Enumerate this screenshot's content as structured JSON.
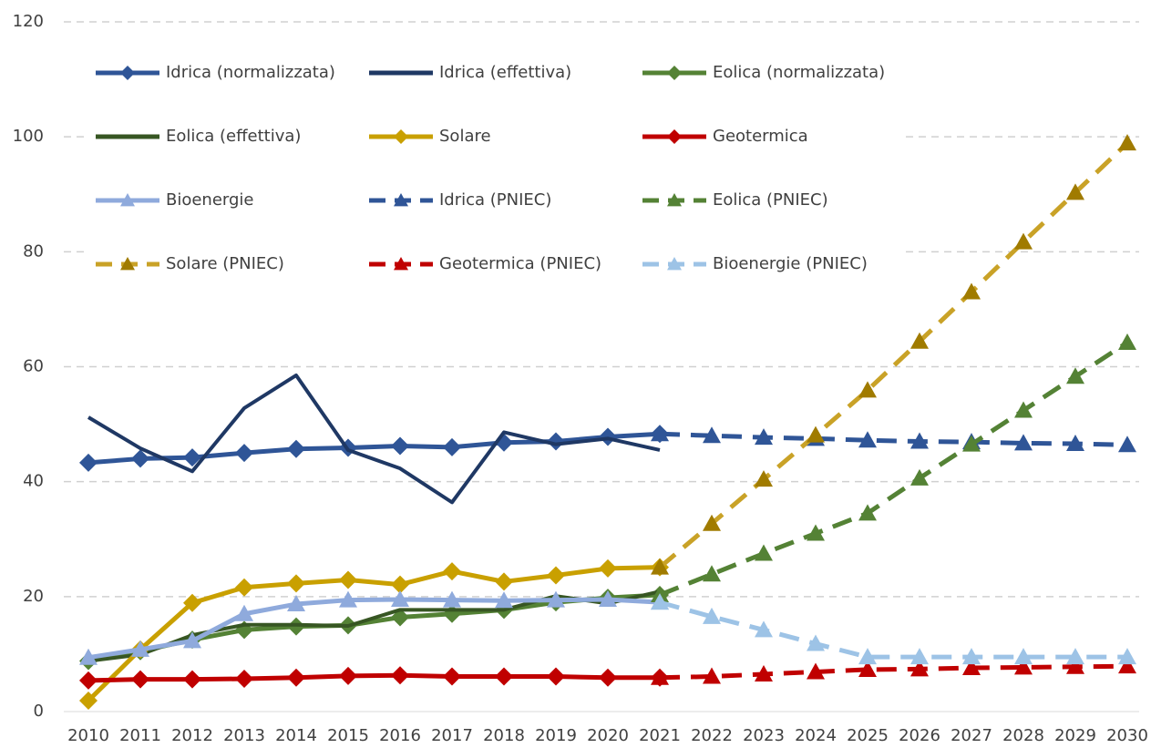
{
  "chart_data": {
    "type": "line",
    "categories": [
      "2010",
      "2011",
      "2012",
      "2013",
      "2014",
      "2015",
      "2016",
      "2017",
      "2018",
      "2019",
      "2020",
      "2021",
      "2022",
      "2023",
      "2024",
      "2025",
      "2026",
      "2027",
      "2028",
      "2029",
      "2030"
    ],
    "ylim": [
      0,
      120
    ],
    "yticks": [
      0,
      20,
      40,
      60,
      80,
      100,
      120
    ],
    "grid": true,
    "series": [
      {
        "name": "Idrica (normalizzata)",
        "color": "#2f5597",
        "marker": "diamond",
        "dashed": false,
        "values": [
          43.3,
          44,
          44.2,
          45,
          45.7,
          45.9,
          46.2,
          46,
          46.8,
          47,
          47.8,
          48.3,
          null,
          null,
          null,
          null,
          null,
          null,
          null,
          null,
          null
        ]
      },
      {
        "name": "Idrica (effettiva)",
        "color": "#1f3864",
        "marker": "none",
        "dashed": false,
        "values": [
          51.2,
          45.8,
          41.8,
          52.8,
          58.5,
          45.5,
          42.3,
          36.4,
          48.6,
          46.5,
          47.5,
          45.5,
          null,
          null,
          null,
          null,
          null,
          null,
          null,
          null,
          null
        ]
      },
      {
        "name": "Eolica (normalizzata)",
        "color": "#548235",
        "marker": "diamond",
        "dashed": false,
        "values": [
          8.8,
          10.5,
          12.5,
          14.2,
          14.8,
          15,
          16.4,
          17,
          17.7,
          19,
          19.8,
          20.3,
          null,
          null,
          null,
          null,
          null,
          null,
          null,
          null,
          null
        ]
      },
      {
        "name": "Eolica (effettiva)",
        "color": "#375623",
        "marker": "none",
        "dashed": false,
        "values": [
          8.8,
          9.9,
          13.3,
          15.1,
          15.1,
          14.9,
          17.7,
          17.7,
          17.7,
          20.1,
          18.8,
          20.9,
          null,
          null,
          null,
          null,
          null,
          null,
          null,
          null,
          null
        ]
      },
      {
        "name": "Solare",
        "color": "#c9a000",
        "marker": "diamond",
        "dashed": false,
        "values": [
          1.9,
          10.8,
          18.9,
          21.6,
          22.3,
          22.9,
          22.1,
          24.4,
          22.6,
          23.7,
          24.9,
          25.1,
          null,
          null,
          null,
          null,
          null,
          null,
          null,
          null,
          null
        ]
      },
      {
        "name": "Geotermica",
        "color": "#c00000",
        "marker": "diamond",
        "dashed": false,
        "values": [
          5.4,
          5.6,
          5.6,
          5.7,
          5.9,
          6.2,
          6.3,
          6.1,
          6.1,
          6.1,
          5.9,
          5.9,
          null,
          null,
          null,
          null,
          null,
          null,
          null,
          null,
          null
        ]
      },
      {
        "name": "Bioenergie",
        "color": "#8faadc",
        "marker": "triangle",
        "dashed": false,
        "values": [
          9.4,
          10.8,
          12.3,
          17,
          18.7,
          19.4,
          19.5,
          19.4,
          19.3,
          19.4,
          19.5,
          19.0,
          null,
          null,
          null,
          null,
          null,
          null,
          null,
          null,
          null
        ]
      },
      {
        "name": "Idrica (PNIEC)",
        "color": "#2f5597",
        "marker": "triangle",
        "dashed": true,
        "values": [
          null,
          null,
          null,
          null,
          null,
          null,
          null,
          null,
          null,
          null,
          null,
          48.3,
          48,
          47.7,
          47.5,
          47.2,
          47,
          46.9,
          46.7,
          46.6,
          46.4
        ]
      },
      {
        "name": "Eolica (PNIEC)",
        "color": "#548235",
        "marker": "triangle",
        "dashed": true,
        "values": [
          null,
          null,
          null,
          null,
          null,
          null,
          null,
          null,
          null,
          null,
          null,
          20.3,
          23.9,
          27.5,
          31,
          34.5,
          40.6,
          46.5,
          52.4,
          58.3,
          64.2
        ]
      },
      {
        "name": "Solare (PNIEC)",
        "color": "#c9a227",
        "marker": "triangle",
        "dashed": true,
        "values": [
          null,
          null,
          null,
          null,
          null,
          null,
          null,
          null,
          null,
          null,
          null,
          25.1,
          32.7,
          40.4,
          48.1,
          55.9,
          64.4,
          73,
          81.7,
          90.3,
          98.9
        ]
      },
      {
        "name": "Geotermica (PNIEC)",
        "color": "#c00000",
        "marker": "triangle",
        "dashed": true,
        "values": [
          null,
          null,
          null,
          null,
          null,
          null,
          null,
          null,
          null,
          null,
          null,
          5.9,
          6.1,
          6.5,
          6.9,
          7.3,
          7.4,
          7.6,
          7.7,
          7.8,
          7.9
        ]
      },
      {
        "name": "Bioenergie (PNIEC)",
        "color": "#9dc3e6",
        "marker": "triangle",
        "dashed": true,
        "values": [
          null,
          null,
          null,
          null,
          null,
          null,
          null,
          null,
          null,
          null,
          null,
          19.0,
          16.5,
          14.2,
          11.8,
          9.5,
          9.5,
          9.5,
          9.5,
          9.5,
          9.5
        ]
      }
    ]
  }
}
